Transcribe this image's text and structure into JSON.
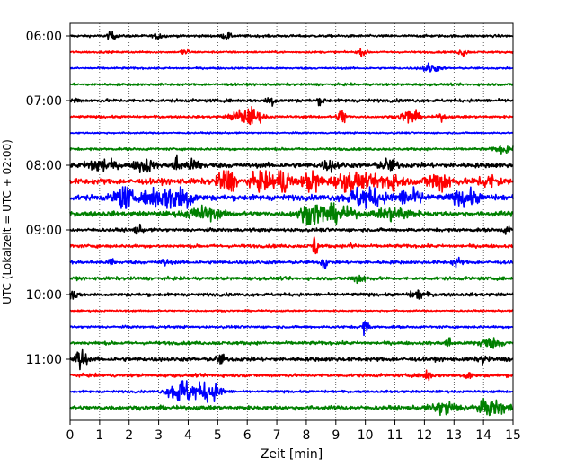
{
  "chart_data": {
    "type": "line",
    "title": "",
    "xlabel": "Zeit  [min]",
    "ylabel": "UTC (Lokalzeit = UTC + 02:00)",
    "xlim": [
      0,
      15
    ],
    "x_ticks": [
      "0",
      "1",
      "2",
      "3",
      "4",
      "5",
      "6",
      "7",
      "8",
      "9",
      "10",
      "11",
      "12",
      "13",
      "14",
      "15"
    ],
    "y_tick_labels": [
      "06:00",
      "07:00",
      "08:00",
      "09:00",
      "10:00",
      "11:00"
    ],
    "y_tick_rows": [
      0,
      4,
      8,
      12,
      16,
      20
    ],
    "grid": "vertical dotted at each minute",
    "trace_colors": [
      "#000000",
      "#ff0000",
      "#0000ff",
      "#008000"
    ],
    "rows": [
      {
        "start": "06:00",
        "color": "#000000",
        "noise": 0.15,
        "events": [
          {
            "t": 1.4,
            "a": 0.5,
            "w": 0.1
          },
          {
            "t": 3.0,
            "a": 0.4,
            "w": 0.1
          },
          {
            "t": 5.3,
            "a": 0.4,
            "w": 0.1
          }
        ]
      },
      {
        "start": "06:15",
        "color": "#ff0000",
        "noise": 0.12,
        "events": [
          {
            "t": 3.9,
            "a": 0.4,
            "w": 0.1
          },
          {
            "t": 9.9,
            "a": 0.4,
            "w": 0.1
          },
          {
            "t": 13.3,
            "a": 0.5,
            "w": 0.1
          }
        ]
      },
      {
        "start": "06:30",
        "color": "#0000ff",
        "noise": 0.12,
        "events": [
          {
            "t": 12.2,
            "a": 0.6,
            "w": 0.2
          }
        ]
      },
      {
        "start": "06:45",
        "color": "#008000",
        "noise": 0.15,
        "events": []
      },
      {
        "start": "07:00",
        "color": "#000000",
        "noise": 0.2,
        "events": [
          {
            "t": 0.2,
            "a": 0.3,
            "w": 0.1
          },
          {
            "t": 6.8,
            "a": 0.7,
            "w": 0.1
          },
          {
            "t": 8.5,
            "a": 0.4,
            "w": 0.1
          }
        ]
      },
      {
        "start": "07:15",
        "color": "#ff0000",
        "noise": 0.15,
        "events": [
          {
            "t": 5.7,
            "a": 0.8,
            "w": 0.2
          },
          {
            "t": 6.2,
            "a": 1.1,
            "w": 0.2
          },
          {
            "t": 9.2,
            "a": 1.1,
            "w": 0.1
          },
          {
            "t": 11.5,
            "a": 1.0,
            "w": 0.2
          },
          {
            "t": 12.6,
            "a": 0.4,
            "w": 0.1
          }
        ]
      },
      {
        "start": "07:30",
        "color": "#0000ff",
        "noise": 0.1,
        "events": []
      },
      {
        "start": "07:45",
        "color": "#008000",
        "noise": 0.15,
        "events": [
          {
            "t": 14.7,
            "a": 0.5,
            "w": 0.2
          }
        ]
      },
      {
        "start": "08:00",
        "color": "#000000",
        "noise": 0.3,
        "events": [
          {
            "t": 1.0,
            "a": 0.9,
            "w": 0.3
          },
          {
            "t": 2.5,
            "a": 0.9,
            "w": 0.2
          },
          {
            "t": 3.6,
            "a": 1.1,
            "w": 0.1
          },
          {
            "t": 4.2,
            "a": 0.6,
            "w": 0.2
          },
          {
            "t": 8.8,
            "a": 0.6,
            "w": 0.2
          },
          {
            "t": 10.8,
            "a": 0.7,
            "w": 0.2
          }
        ]
      },
      {
        "start": "08:15",
        "color": "#ff0000",
        "noise": 0.35,
        "events": [
          {
            "t": 5.3,
            "a": 1.6,
            "w": 0.2
          },
          {
            "t": 6.5,
            "a": 1.0,
            "w": 0.3
          },
          {
            "t": 7.2,
            "a": 1.7,
            "w": 0.2
          },
          {
            "t": 8.2,
            "a": 1.5,
            "w": 0.2
          },
          {
            "t": 9.5,
            "a": 1.1,
            "w": 0.4
          },
          {
            "t": 10.8,
            "a": 1.1,
            "w": 0.3
          },
          {
            "t": 12.5,
            "a": 1.3,
            "w": 0.3
          },
          {
            "t": 14.2,
            "a": 0.7,
            "w": 0.3
          }
        ]
      },
      {
        "start": "08:30",
        "color": "#0000ff",
        "noise": 0.35,
        "events": [
          {
            "t": 1.8,
            "a": 1.7,
            "w": 0.2
          },
          {
            "t": 2.8,
            "a": 1.3,
            "w": 0.2
          },
          {
            "t": 3.4,
            "a": 1.4,
            "w": 0.2
          },
          {
            "t": 3.9,
            "a": 1.5,
            "w": 0.2
          },
          {
            "t": 10.0,
            "a": 1.3,
            "w": 0.4
          },
          {
            "t": 11.5,
            "a": 1.0,
            "w": 0.3
          },
          {
            "t": 13.4,
            "a": 0.9,
            "w": 0.3
          }
        ]
      },
      {
        "start": "08:45",
        "color": "#008000",
        "noise": 0.3,
        "events": [
          {
            "t": 4.5,
            "a": 0.8,
            "w": 0.4
          },
          {
            "t": 8.2,
            "a": 1.3,
            "w": 0.3
          },
          {
            "t": 9.0,
            "a": 0.9,
            "w": 0.4
          },
          {
            "t": 11.0,
            "a": 0.8,
            "w": 0.4
          }
        ]
      },
      {
        "start": "09:00",
        "color": "#000000",
        "noise": 0.2,
        "events": [
          {
            "t": 2.3,
            "a": 0.5,
            "w": 0.1
          },
          {
            "t": 14.8,
            "a": 0.4,
            "w": 0.1
          }
        ]
      },
      {
        "start": "09:15",
        "color": "#ff0000",
        "noise": 0.2,
        "events": [
          {
            "t": 8.3,
            "a": 1.7,
            "w": 0.06
          },
          {
            "t": 9.6,
            "a": 0.4,
            "w": 0.1
          }
        ]
      },
      {
        "start": "09:30",
        "color": "#0000ff",
        "noise": 0.2,
        "events": [
          {
            "t": 1.4,
            "a": 0.7,
            "w": 0.06
          },
          {
            "t": 3.2,
            "a": 0.4,
            "w": 0.1
          },
          {
            "t": 8.6,
            "a": 1.1,
            "w": 0.06
          },
          {
            "t": 13.1,
            "a": 0.6,
            "w": 0.1
          }
        ]
      },
      {
        "start": "09:45",
        "color": "#008000",
        "noise": 0.2,
        "events": [
          {
            "t": 9.8,
            "a": 0.5,
            "w": 0.2
          }
        ]
      },
      {
        "start": "10:00",
        "color": "#000000",
        "noise": 0.2,
        "events": [
          {
            "t": 0.1,
            "a": 0.7,
            "w": 0.1
          },
          {
            "t": 11.8,
            "a": 0.5,
            "w": 0.2
          }
        ]
      },
      {
        "start": "10:15",
        "color": "#ff0000",
        "noise": 0.1,
        "events": []
      },
      {
        "start": "10:30",
        "color": "#0000ff",
        "noise": 0.15,
        "events": [
          {
            "t": 10.0,
            "a": 1.0,
            "w": 0.08
          }
        ]
      },
      {
        "start": "10:45",
        "color": "#008000",
        "noise": 0.2,
        "events": [
          {
            "t": 12.8,
            "a": 0.8,
            "w": 0.08
          },
          {
            "t": 14.2,
            "a": 0.6,
            "w": 0.3
          }
        ]
      },
      {
        "start": "11:00",
        "color": "#000000",
        "noise": 0.25,
        "events": [
          {
            "t": 0.35,
            "a": 1.5,
            "w": 0.12
          },
          {
            "t": 5.1,
            "a": 0.6,
            "w": 0.1
          },
          {
            "t": 14.0,
            "a": 0.5,
            "w": 0.1
          }
        ]
      },
      {
        "start": "11:15",
        "color": "#ff0000",
        "noise": 0.2,
        "events": [
          {
            "t": 12.1,
            "a": 0.7,
            "w": 0.1
          },
          {
            "t": 13.5,
            "a": 0.5,
            "w": 0.1
          }
        ]
      },
      {
        "start": "11:30",
        "color": "#0000ff",
        "noise": 0.15,
        "events": [
          {
            "t": 3.8,
            "a": 1.7,
            "w": 0.3
          },
          {
            "t": 4.7,
            "a": 1.2,
            "w": 0.3
          }
        ]
      },
      {
        "start": "11:45",
        "color": "#008000",
        "noise": 0.25,
        "events": [
          {
            "t": 12.7,
            "a": 0.8,
            "w": 0.3
          },
          {
            "t": 14.3,
            "a": 0.9,
            "w": 0.4
          }
        ]
      }
    ]
  }
}
